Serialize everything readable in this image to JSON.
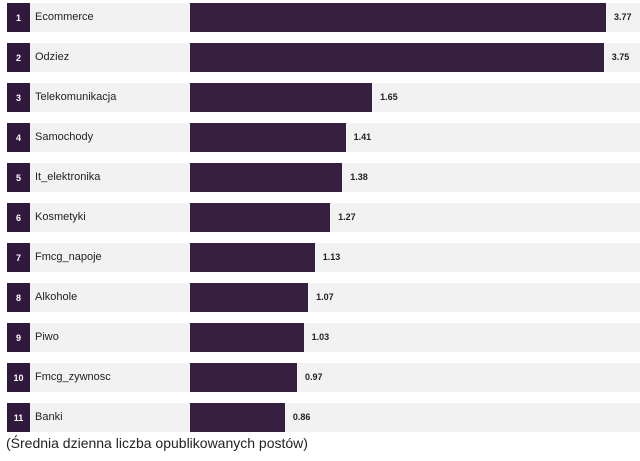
{
  "chart_data": {
    "type": "bar",
    "orientation": "horizontal",
    "ranks": [
      "1",
      "2",
      "3",
      "4",
      "5",
      "6",
      "7",
      "8",
      "9",
      "10",
      "11"
    ],
    "categories": [
      "Ecommerce",
      "Odziez",
      "Telekomunikacja",
      "Samochody",
      "It_elektronika",
      "Kosmetyki",
      "Fmcg_napoje",
      "Alkohole",
      "Piwo",
      "Fmcg_zywnosc",
      "Banki"
    ],
    "values": [
      3.77,
      3.75,
      1.65,
      1.41,
      1.38,
      1.27,
      1.13,
      1.07,
      1.03,
      0.97,
      0.86
    ],
    "value_labels": [
      "3.77",
      "3.75",
      "1.65",
      "1.41",
      "1.38",
      "1.27",
      "1.13",
      "1.07",
      "1.03",
      "0.97",
      "0.86"
    ],
    "xlim": [
      0,
      3.77
    ],
    "caption": "(Średnia dzienna liczba opublikowanych postów)",
    "grid": false,
    "colors": {
      "bar": "#35203f",
      "rank_box": "#2f1a3d",
      "row_background": "#f2f2f2"
    }
  }
}
